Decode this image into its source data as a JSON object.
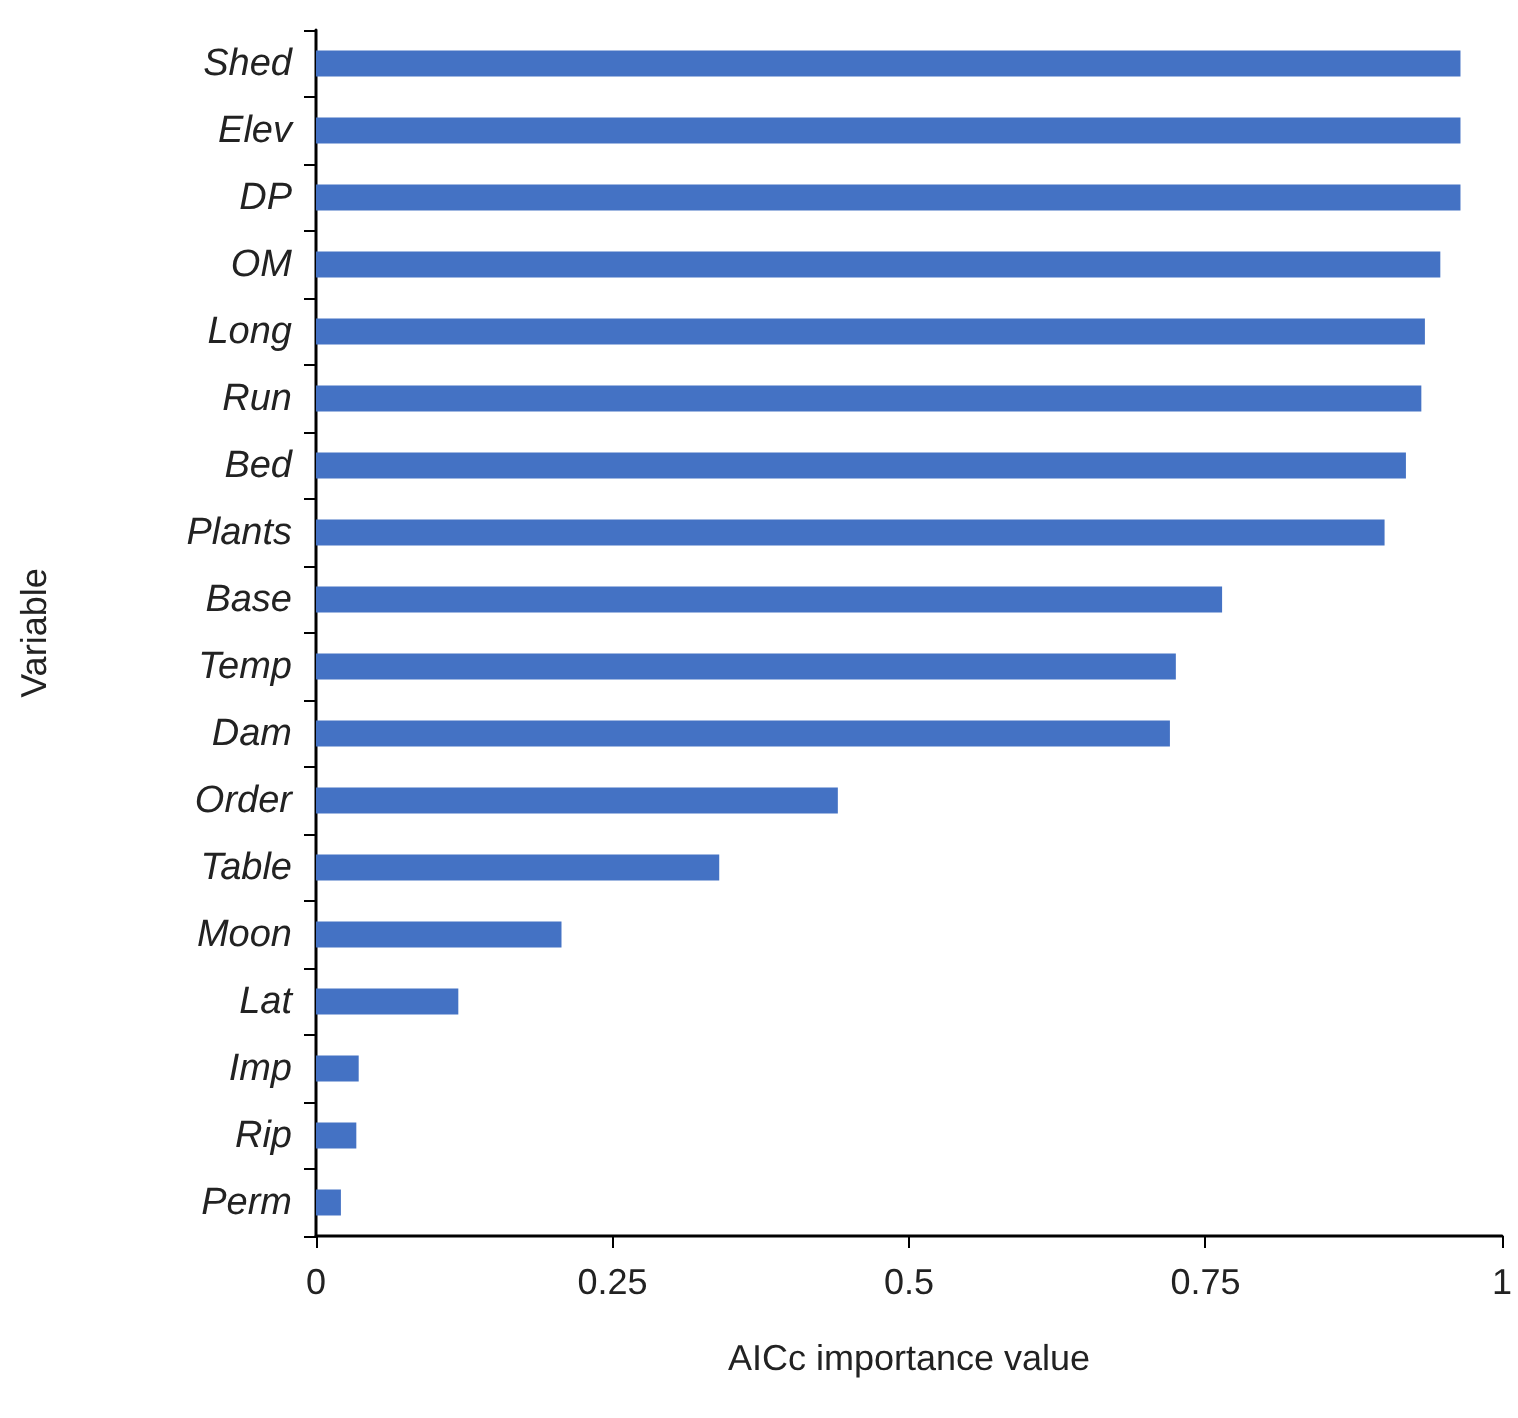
{
  "chart_data": {
    "type": "bar",
    "orientation": "horizontal",
    "xlabel": "AICc importance value",
    "ylabel": "Variable",
    "categories": [
      "Shed",
      "Elev",
      "DP",
      "OM",
      "Long",
      "Run",
      "Bed",
      "Plants",
      "Base",
      "Temp",
      "Dam",
      "Order",
      "Table",
      "Moon",
      "Lat",
      "Imp",
      "Rip",
      "Perm"
    ],
    "values": [
      0.965,
      0.965,
      0.965,
      0.948,
      0.935,
      0.932,
      0.919,
      0.901,
      0.764,
      0.725,
      0.72,
      0.44,
      0.34,
      0.207,
      0.12,
      0.036,
      0.034,
      0.021
    ],
    "color": "#4472c4",
    "xlim": [
      0,
      1
    ],
    "xticks": [
      0,
      0.25,
      0.5,
      0.75,
      1
    ],
    "grid": false
  }
}
